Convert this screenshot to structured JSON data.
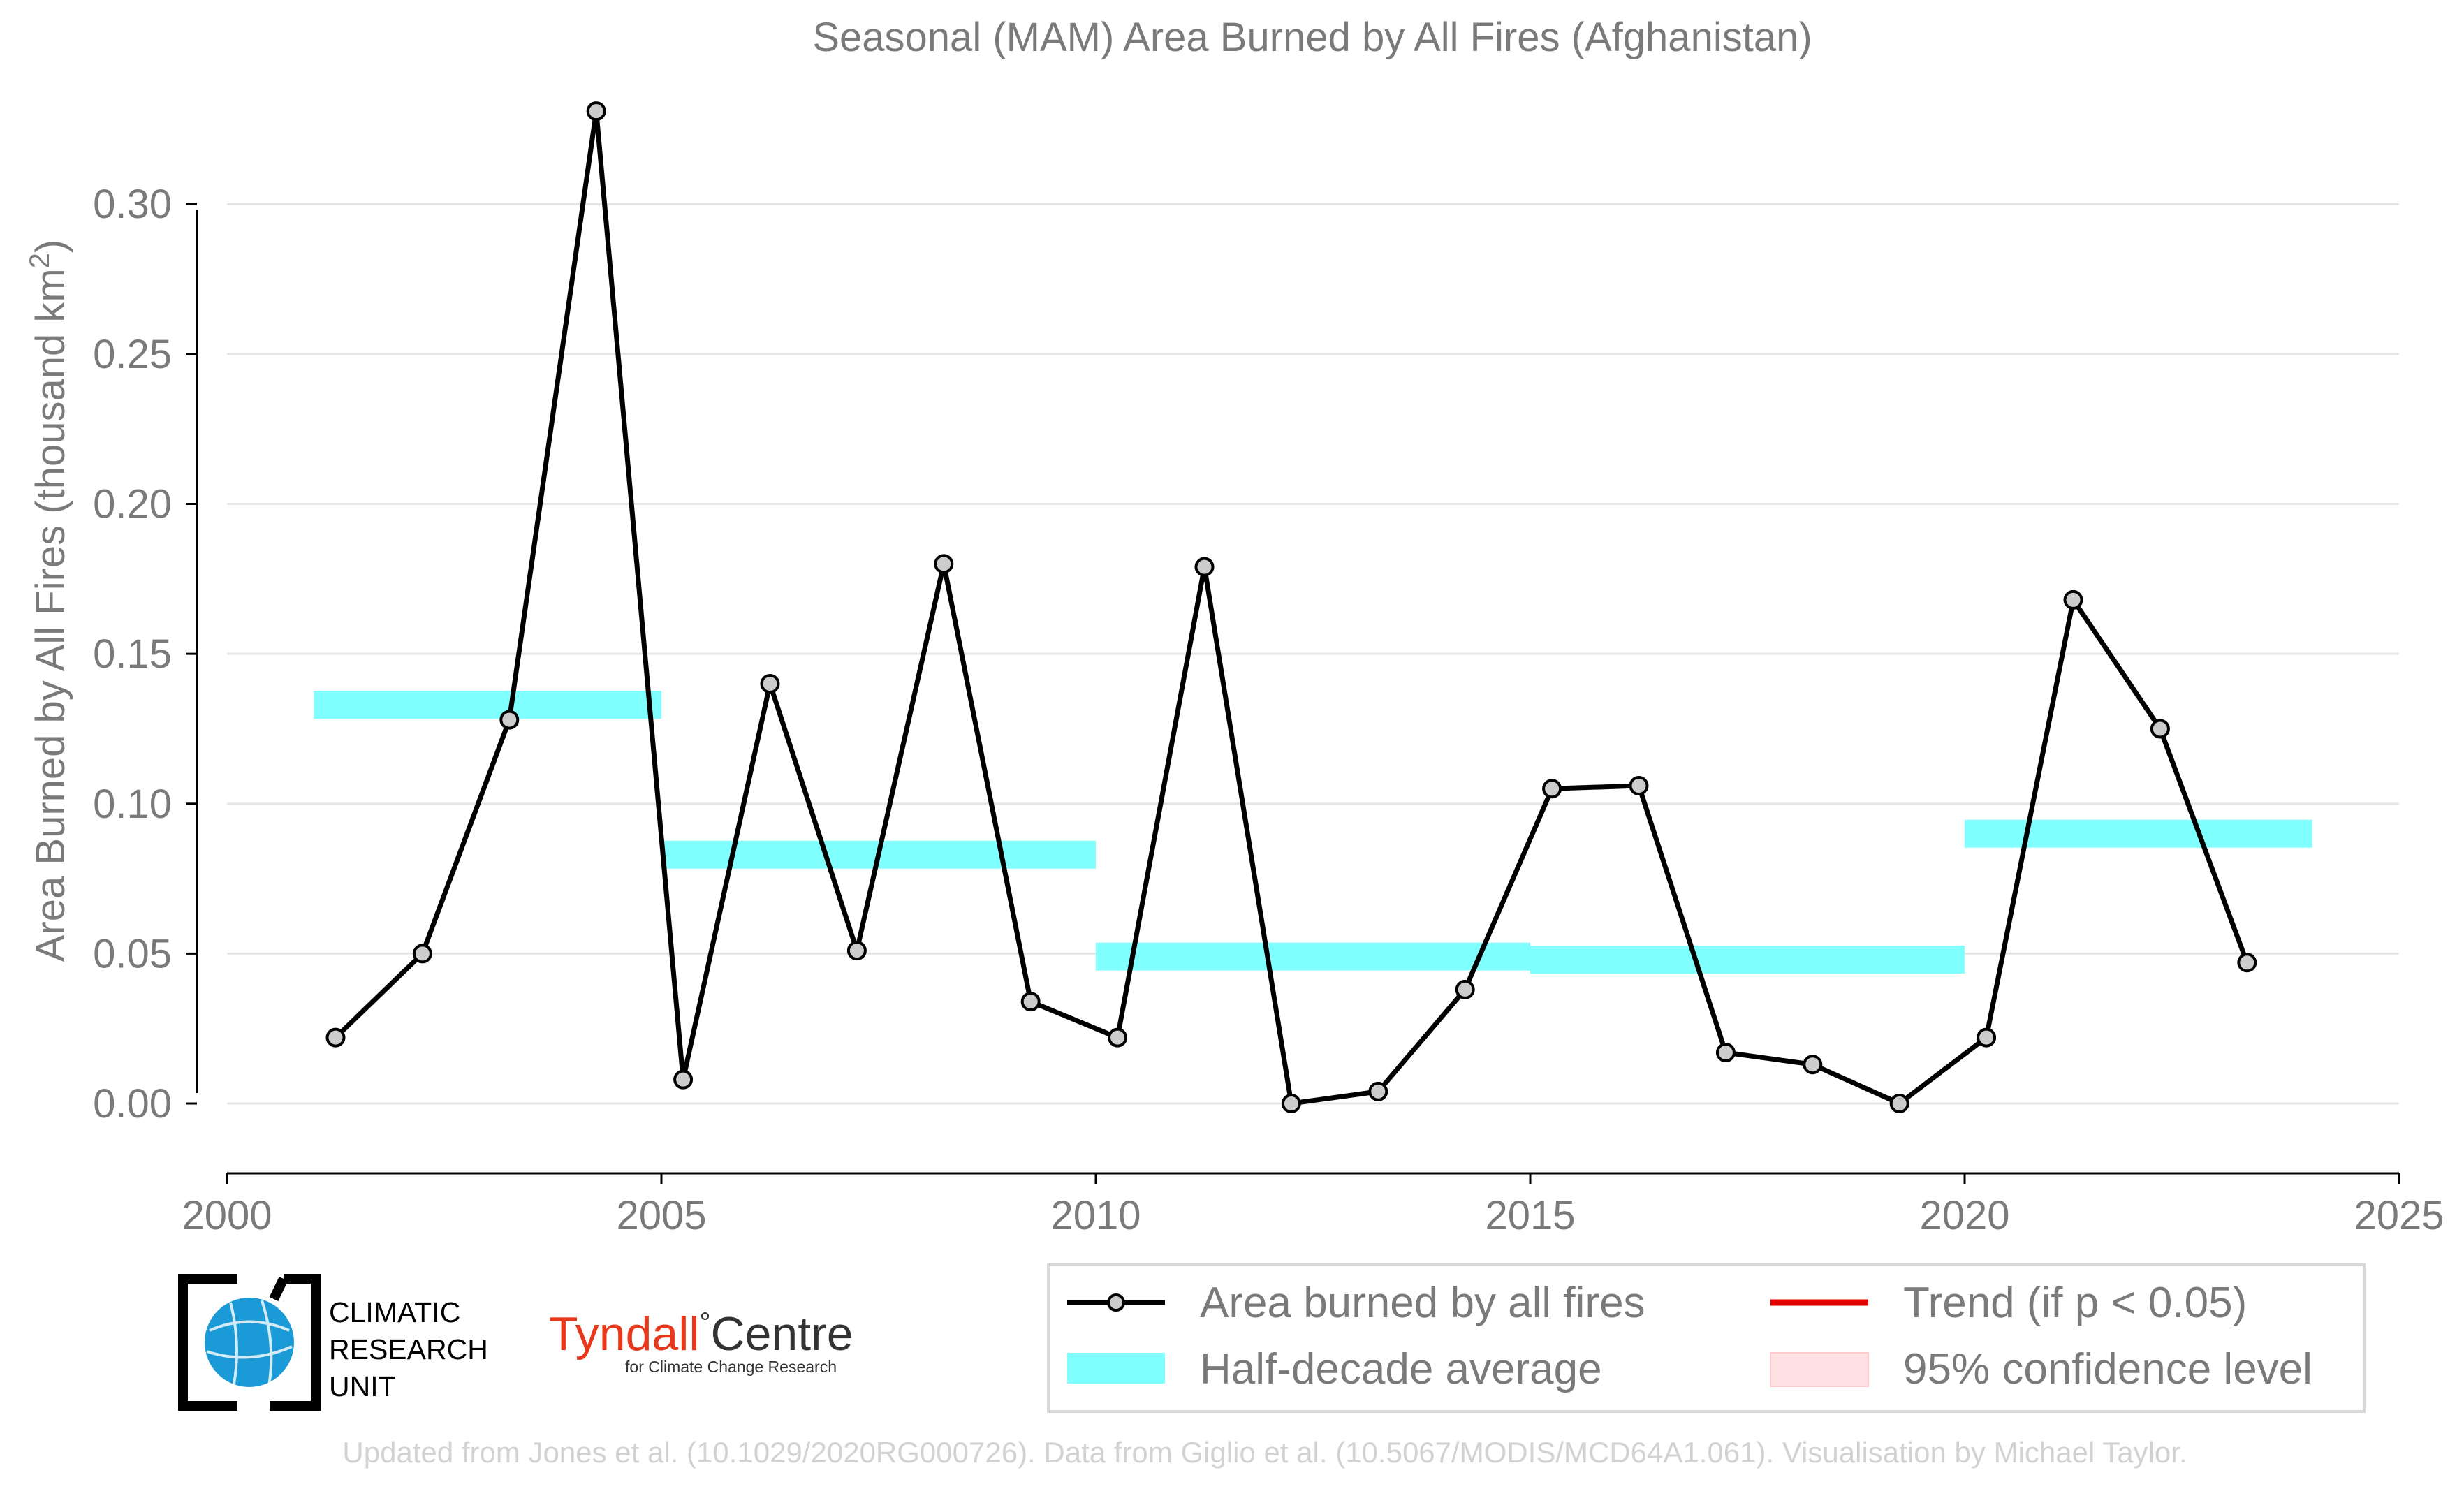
{
  "chart_data": {
    "type": "line",
    "title": "Seasonal (MAM) Area Burned by All Fires (Afghanistan)",
    "ylabel": "Area Burned by All Fires (thousand km",
    "ylabel_sup": "2",
    "ylabel_end": ")",
    "xlim": [
      2000,
      2025
    ],
    "ylim": [
      -0.017,
      0.335
    ],
    "x_ticks": [
      2000,
      2005,
      2010,
      2015,
      2020,
      2025
    ],
    "x_tick_labels": [
      "2000",
      "2005",
      "2010",
      "2015",
      "2020",
      "2025"
    ],
    "y_ticks": [
      0.0,
      0.05,
      0.1,
      0.15,
      0.2,
      0.25,
      0.3
    ],
    "y_tick_labels": [
      "0.00",
      "0.05",
      "0.10",
      "0.15",
      "0.20",
      "0.25",
      "0.30"
    ],
    "grid": "horizontal",
    "series": [
      {
        "name": "Area burned by all fires",
        "color": "#000000",
        "marker_fill": "#cccccc",
        "x": [
          2001.25,
          2002.25,
          2003.25,
          2004.25,
          2005.25,
          2006.25,
          2007.25,
          2008.25,
          2009.25,
          2010.25,
          2011.25,
          2012.25,
          2013.25,
          2014.25,
          2015.25,
          2016.25,
          2017.25,
          2018.25,
          2019.25,
          2020.25,
          2021.25,
          2022.25,
          2023.25
        ],
        "y": [
          0.022,
          0.05,
          0.128,
          0.331,
          0.008,
          0.14,
          0.051,
          0.18,
          0.034,
          0.022,
          0.179,
          0.0,
          0.004,
          0.038,
          0.105,
          0.106,
          0.017,
          0.013,
          0.0,
          0.022,
          0.168,
          0.125,
          0.047
        ]
      }
    ],
    "half_decade_average": {
      "name": "Half-decade average",
      "color": "#80ffff",
      "segments": [
        {
          "x0": 2001,
          "x1": 2005,
          "y": 0.133
        },
        {
          "x0": 2005,
          "x1": 2010,
          "y": 0.083
        },
        {
          "x0": 2010,
          "x1": 2015,
          "y": 0.049
        },
        {
          "x0": 2015,
          "x1": 2020,
          "y": 0.048
        },
        {
          "x0": 2020,
          "x1": 2024,
          "y": 0.09
        }
      ]
    },
    "legend": {
      "placement": "bottom-right",
      "entries": [
        {
          "label": "Area burned by all fires",
          "kind": "line-marker",
          "color": "#000000"
        },
        {
          "label": "Trend (if p < 0.05)",
          "kind": "line",
          "color": "#e60000"
        },
        {
          "label": "Half-decade average",
          "kind": "band",
          "color": "#80ffff"
        },
        {
          "label": "95% confidence level",
          "kind": "patch",
          "color": "#ffe0e3"
        }
      ]
    }
  },
  "logos": {
    "cru_lines": [
      "CLIMATIC",
      "RESEARCH",
      "UNIT"
    ],
    "tyndall_main": "Tyndall",
    "tyndall_degree": "°",
    "tyndall_centre": "Centre",
    "tyndall_sub": "for Climate Change Research"
  },
  "footer": "Updated from Jones et al. (10.1029/2020RG000726). Data from Giglio et al. (10.5067/MODIS/MCD64A1.061). Visualisation by Michael Taylor."
}
